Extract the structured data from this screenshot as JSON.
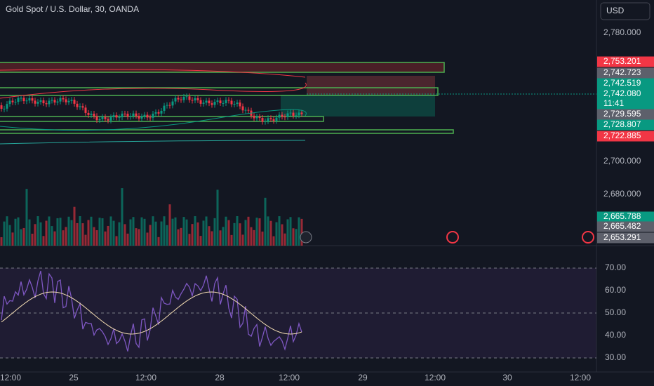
{
  "header": {
    "title": "Gold Spot / U.S. Dollar, 30, OANDA",
    "currency": "USD"
  },
  "price_axis": {
    "ticks": [
      "2,780.000",
      "2,700.000",
      "2,680.000"
    ]
  },
  "price_labels": [
    {
      "text": "2,753.201",
      "kind": "red"
    },
    {
      "text": "2,742.723",
      "kind": "gray"
    },
    {
      "text": "2,742.519",
      "kind": "green"
    },
    {
      "text": "2,742.080",
      "kind": "green"
    },
    {
      "text": "2,729.595",
      "kind": "gray"
    },
    {
      "text": "2,728.807",
      "kind": "green"
    },
    {
      "text": "2,722.885",
      "kind": "red"
    }
  ],
  "countdown": "11:41",
  "volume_labels": [
    {
      "text": "2,665.788",
      "kind": "green"
    },
    {
      "text": "2,665.482",
      "kind": "gray"
    },
    {
      "text": "2,653.291",
      "kind": "gray"
    }
  ],
  "rsi_axis": {
    "ticks": [
      "70.00",
      "60.00",
      "50.00",
      "40.00",
      "30.00"
    ]
  },
  "time_axis": {
    "labels": [
      "12:00",
      "25",
      "12:00",
      "28",
      "12:00",
      "29",
      "12:00",
      "30",
      "12:00"
    ]
  }
}
